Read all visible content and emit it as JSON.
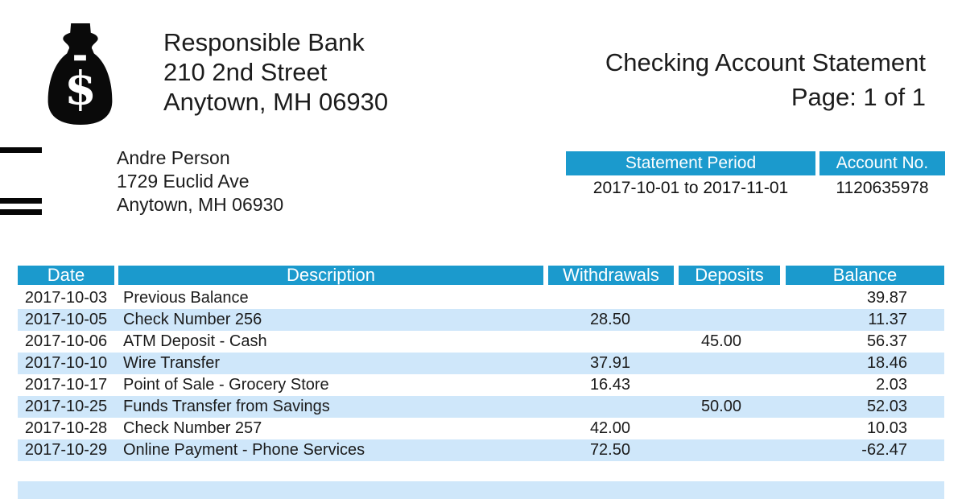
{
  "bank": {
    "logo_icon": "money-bag-icon",
    "name": "Responsible Bank",
    "address_line1": "210 2nd Street",
    "address_line2": "Anytown, MH 06930"
  },
  "document": {
    "title": "Checking Account Statement",
    "page_label": "Page: 1 of 1"
  },
  "customer": {
    "name": "Andre Person",
    "address_line1": "1729 Euclid Ave",
    "address_line2": "Anytown, MH 06930"
  },
  "account_summary": {
    "statement_period_label": "Statement Period",
    "statement_period_value": "2017-10-01 to 2017-11-01",
    "account_no_label": "Account No.",
    "account_no_value": "1120635978"
  },
  "colors": {
    "header_blue": "#1b9acd",
    "row_alt_blue": "#cfe7fa",
    "text": "#1f1f1f"
  },
  "transactions": {
    "columns": [
      "Date",
      "Description",
      "Withdrawals",
      "Deposits",
      "Balance"
    ],
    "rows": [
      {
        "date": "2017-10-03",
        "description": "Previous Balance",
        "withdrawals": "",
        "deposits": "",
        "balance": "39.87"
      },
      {
        "date": "2017-10-05",
        "description": "Check Number 256",
        "withdrawals": "28.50",
        "deposits": "",
        "balance": "11.37"
      },
      {
        "date": "2017-10-06",
        "description": "ATM Deposit - Cash",
        "withdrawals": "",
        "deposits": "45.00",
        "balance": "56.37"
      },
      {
        "date": "2017-10-10",
        "description": "Wire Transfer",
        "withdrawals": "37.91",
        "deposits": "",
        "balance": "18.46"
      },
      {
        "date": "2017-10-17",
        "description": "Point of Sale - Grocery Store",
        "withdrawals": "16.43",
        "deposits": "",
        "balance": "2.03"
      },
      {
        "date": "2017-10-25",
        "description": "Funds Transfer from Savings",
        "withdrawals": "",
        "deposits": "50.00",
        "balance": "52.03"
      },
      {
        "date": "2017-10-28",
        "description": "Check Number 257",
        "withdrawals": "42.00",
        "deposits": "",
        "balance": "10.03"
      },
      {
        "date": "2017-10-29",
        "description": "Online Payment - Phone Services",
        "withdrawals": "72.50",
        "deposits": "",
        "balance": "-62.47"
      }
    ]
  }
}
